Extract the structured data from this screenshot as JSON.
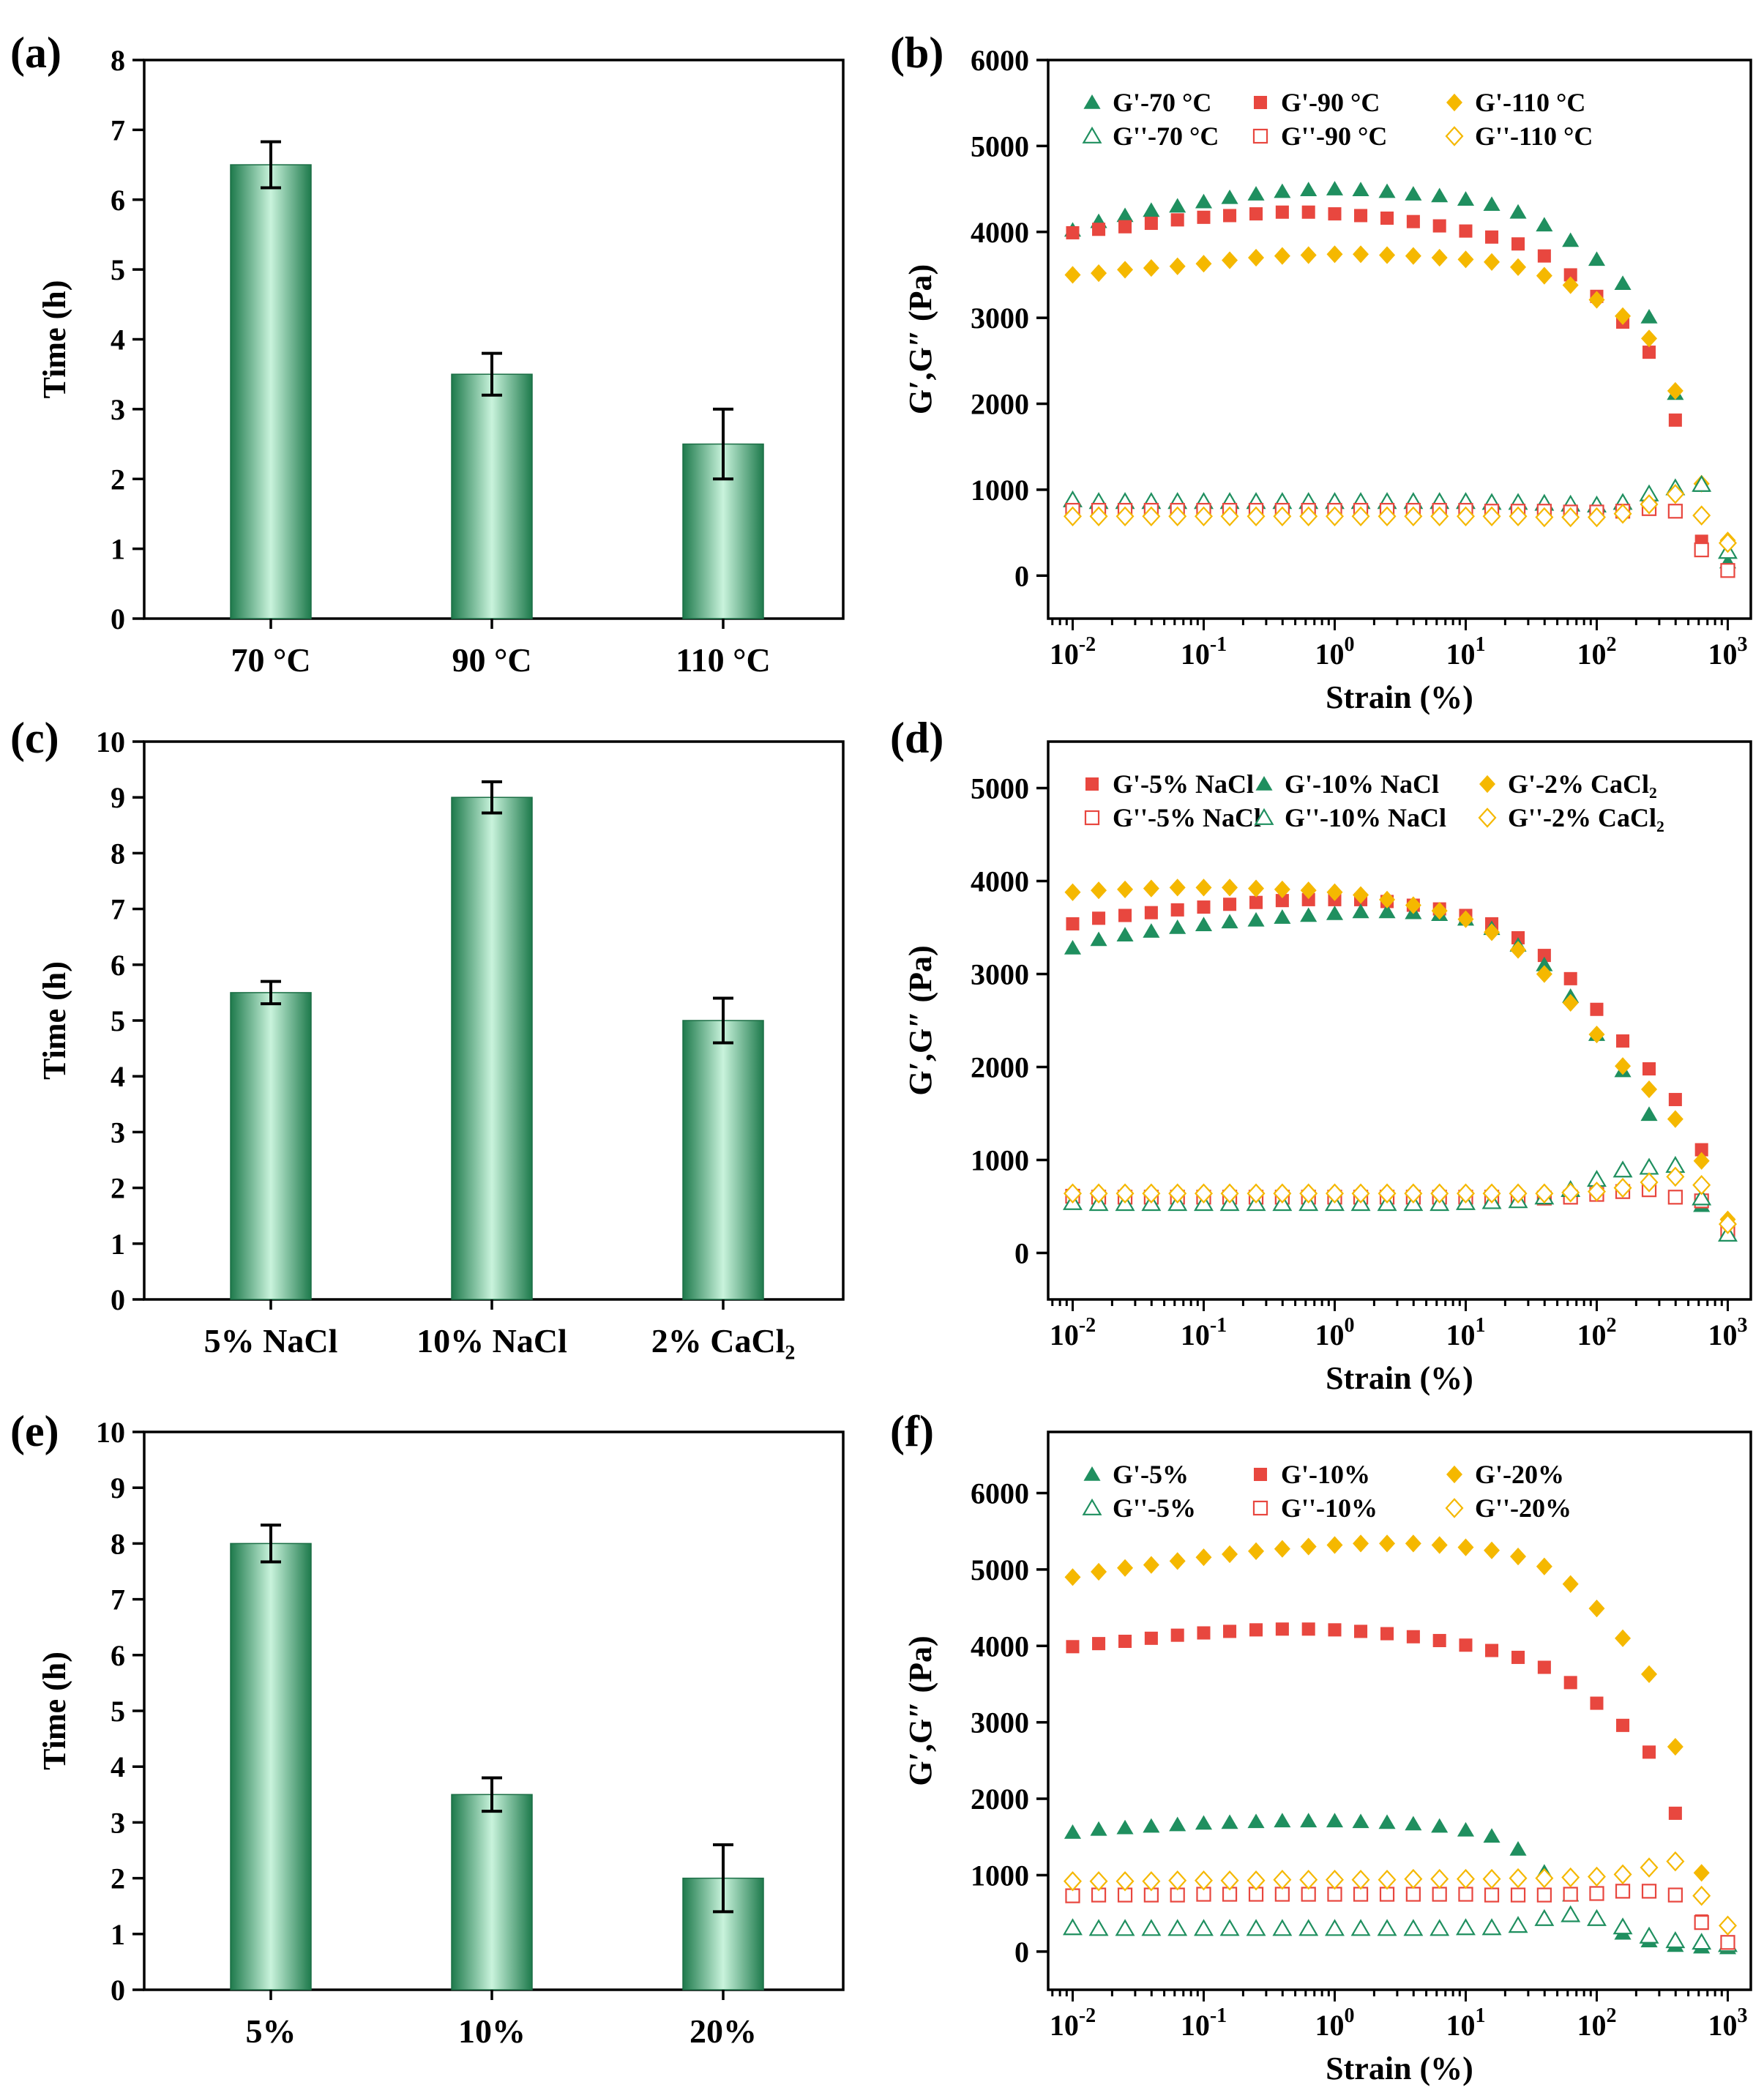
{
  "figure": {
    "panel_labels": [
      "(a)",
      "(b)",
      "(c)",
      "(d)",
      "(e)",
      "(f)"
    ]
  },
  "chart_data": [
    {
      "panel": "(a)",
      "type": "bar",
      "xlabel": "",
      "ylabel": "Time (h)",
      "ylim": [
        0,
        8
      ],
      "yticks": [
        0,
        1,
        2,
        3,
        4,
        5,
        6,
        7,
        8
      ],
      "categories": [
        "70 °C",
        "90 °C",
        "110 °C"
      ],
      "values": [
        6.5,
        3.5,
        2.5
      ],
      "errors": [
        0.33,
        0.3,
        0.5
      ]
    },
    {
      "panel": "(b)",
      "type": "scatter",
      "xscale": "log",
      "xlabel": "Strain (%)",
      "ylabel": "G′,G″ (Pa)",
      "xlim": [
        0.0065,
        1500
      ],
      "ylim": [
        -500,
        6000
      ],
      "yticks": [
        0,
        1000,
        2000,
        3000,
        4000,
        5000,
        6000
      ],
      "xticks": [
        {
          "base": "10",
          "exp": "-2",
          "value": 0.01
        },
        {
          "base": "10",
          "exp": "-1",
          "value": 0.1
        },
        {
          "base": "10",
          "exp": "0",
          "value": 1
        },
        {
          "base": "10",
          "exp": "1",
          "value": 10
        },
        {
          "base": "10",
          "exp": "2",
          "value": 100
        },
        {
          "base": "10",
          "exp": "3",
          "value": 1000
        }
      ],
      "x": [
        0.01,
        0.0158,
        0.0251,
        0.0398,
        0.0631,
        0.1,
        0.158,
        0.251,
        0.398,
        0.631,
        1,
        1.58,
        2.51,
        3.98,
        6.31,
        10,
        15.8,
        25.1,
        39.8,
        63.1,
        100,
        158,
        251,
        398,
        631,
        1000
      ],
      "legend": {
        "position": "top-left",
        "columns": 3
      },
      "series": [
        {
          "name": "G'-70 °C",
          "marker": "triangle",
          "filled": true,
          "color": "#1f8f5f",
          "values": [
            4020,
            4120,
            4190,
            4250,
            4300,
            4350,
            4400,
            4440,
            4470,
            4490,
            4500,
            4490,
            4470,
            4440,
            4420,
            4380,
            4320,
            4230,
            4080,
            3900,
            3680,
            3400,
            3010,
            2120,
            1050,
            160
          ]
        },
        {
          "name": "G'-90 °C",
          "marker": "square",
          "filled": true,
          "color": "#e8473f",
          "values": [
            3990,
            4030,
            4060,
            4100,
            4140,
            4170,
            4190,
            4210,
            4230,
            4230,
            4210,
            4190,
            4160,
            4120,
            4070,
            4010,
            3940,
            3860,
            3720,
            3500,
            3250,
            2950,
            2600,
            1810,
            400,
            60
          ]
        },
        {
          "name": "G'-110 °C",
          "marker": "diamond",
          "filled": true,
          "color": "#f5b800",
          "values": [
            3500,
            3520,
            3560,
            3580,
            3600,
            3630,
            3670,
            3700,
            3720,
            3730,
            3740,
            3740,
            3730,
            3720,
            3700,
            3680,
            3650,
            3590,
            3490,
            3380,
            3210,
            3020,
            2760,
            2150,
            1070,
            410
          ]
        },
        {
          "name": "G''-70 °C",
          "marker": "triangle",
          "filled": false,
          "color": "#1f8f5f",
          "values": [
            880,
            860,
            860,
            860,
            860,
            860,
            860,
            860,
            860,
            860,
            860,
            860,
            860,
            860,
            860,
            860,
            850,
            850,
            840,
            830,
            820,
            850,
            950,
            1020,
            1060,
            280
          ]
        },
        {
          "name": "G''-90 °C",
          "marker": "square",
          "filled": false,
          "color": "#e8473f",
          "values": [
            760,
            760,
            760,
            760,
            760,
            760,
            760,
            760,
            760,
            760,
            760,
            760,
            760,
            760,
            760,
            760,
            750,
            750,
            750,
            740,
            740,
            750,
            780,
            750,
            300,
            60
          ]
        },
        {
          "name": "G''-110 °C",
          "marker": "diamond",
          "filled": false,
          "color": "#f5b800",
          "values": [
            690,
            690,
            690,
            690,
            690,
            690,
            690,
            690,
            690,
            690,
            690,
            690,
            690,
            690,
            690,
            690,
            690,
            690,
            680,
            680,
            680,
            720,
            830,
            950,
            700,
            380
          ]
        }
      ]
    },
    {
      "panel": "(c)",
      "type": "bar",
      "xlabel": "",
      "ylabel": "Time (h)",
      "ylim": [
        0,
        10
      ],
      "yticks": [
        0,
        1,
        2,
        3,
        4,
        5,
        6,
        7,
        8,
        9,
        10
      ],
      "categories": [
        "5% NaCl",
        "10% NaCl",
        "2% CaCl₂"
      ],
      "values": [
        5.5,
        9.0,
        5.0
      ],
      "errors": [
        0.2,
        0.28,
        0.4
      ]
    },
    {
      "panel": "(d)",
      "type": "scatter",
      "xscale": "log",
      "xlabel": "Strain (%)",
      "ylabel": "G′,G″ (Pa)",
      "xlim": [
        0.0065,
        1500
      ],
      "ylim": [
        -500,
        5500
      ],
      "yticks": [
        0,
        1000,
        2000,
        3000,
        4000,
        5000
      ],
      "xticks": [
        {
          "base": "10",
          "exp": "-2",
          "value": 0.01
        },
        {
          "base": "10",
          "exp": "-1",
          "value": 0.1
        },
        {
          "base": "10",
          "exp": "0",
          "value": 1
        },
        {
          "base": "10",
          "exp": "1",
          "value": 10
        },
        {
          "base": "10",
          "exp": "2",
          "value": 100
        },
        {
          "base": "10",
          "exp": "3",
          "value": 1000
        }
      ],
      "x": [
        0.01,
        0.0158,
        0.0251,
        0.0398,
        0.0631,
        0.1,
        0.158,
        0.251,
        0.398,
        0.631,
        1,
        1.58,
        2.51,
        3.98,
        6.31,
        10,
        15.8,
        25.1,
        39.8,
        63.1,
        100,
        158,
        251,
        398,
        631,
        1000
      ],
      "legend": {
        "position": "top-left",
        "columns": 3
      },
      "series": [
        {
          "name": "G'-5% NaCl",
          "marker": "square",
          "filled": true,
          "color": "#e8473f",
          "values": [
            3540,
            3600,
            3630,
            3660,
            3690,
            3720,
            3750,
            3770,
            3790,
            3800,
            3800,
            3800,
            3780,
            3740,
            3700,
            3630,
            3540,
            3390,
            3200,
            2950,
            2620,
            2280,
            1980,
            1650,
            1110,
            310
          ]
        },
        {
          "name": "G'-10% NaCl",
          "marker": "triangle",
          "filled": true,
          "color": "#1f8f5f",
          "values": [
            3280,
            3370,
            3420,
            3460,
            3500,
            3530,
            3560,
            3580,
            3610,
            3630,
            3650,
            3670,
            3670,
            3660,
            3640,
            3590,
            3490,
            3310,
            3100,
            2760,
            2350,
            1960,
            1490,
            950,
            510,
            210
          ]
        },
        {
          "name": "G'-2% CaCl₂",
          "marker": "diamond",
          "filled": true,
          "color": "#f5b800",
          "values": [
            3880,
            3900,
            3910,
            3920,
            3930,
            3930,
            3930,
            3920,
            3910,
            3900,
            3880,
            3850,
            3800,
            3740,
            3680,
            3590,
            3450,
            3260,
            3000,
            2690,
            2350,
            2010,
            1760,
            1440,
            990,
            360
          ]
        },
        {
          "name": "G''-5% NaCl",
          "marker": "square",
          "filled": false,
          "color": "#e8473f",
          "values": [
            610,
            600,
            600,
            600,
            600,
            600,
            600,
            600,
            600,
            600,
            600,
            600,
            600,
            600,
            600,
            600,
            600,
            590,
            590,
            600,
            630,
            660,
            680,
            600,
            560,
            240
          ]
        },
        {
          "name": "G''-10% NaCl",
          "marker": "triangle",
          "filled": false,
          "color": "#1f8f5f",
          "values": [
            540,
            530,
            530,
            530,
            530,
            530,
            530,
            530,
            530,
            530,
            530,
            530,
            530,
            530,
            530,
            540,
            550,
            560,
            600,
            680,
            790,
            890,
            920,
            940,
            590,
            200
          ]
        },
        {
          "name": "G''-2% CaCl₂",
          "marker": "diamond",
          "filled": false,
          "color": "#f5b800",
          "values": [
            640,
            640,
            640,
            640,
            640,
            640,
            640,
            640,
            640,
            640,
            640,
            640,
            640,
            640,
            640,
            640,
            640,
            640,
            640,
            650,
            660,
            700,
            760,
            820,
            730,
            310
          ]
        }
      ]
    },
    {
      "panel": "(e)",
      "type": "bar",
      "xlabel": "",
      "ylabel": "Time (h)",
      "ylim": [
        0,
        10
      ],
      "yticks": [
        0,
        1,
        2,
        3,
        4,
        5,
        6,
        7,
        8,
        9,
        10
      ],
      "categories": [
        "5%",
        "10%",
        "20%"
      ],
      "values": [
        8.0,
        3.5,
        2.0
      ],
      "errors": [
        0.33,
        0.3,
        0.6
      ]
    },
    {
      "panel": "(f)",
      "type": "scatter",
      "xscale": "log",
      "xlabel": "Strain (%)",
      "ylabel": "G′,G″ (Pa)",
      "xlim": [
        0.0065,
        1500
      ],
      "ylim": [
        -500,
        6800
      ],
      "yticks": [
        0,
        1000,
        2000,
        3000,
        4000,
        5000,
        6000
      ],
      "xticks": [
        {
          "base": "10",
          "exp": "-2",
          "value": 0.01
        },
        {
          "base": "10",
          "exp": "-1",
          "value": 0.1
        },
        {
          "base": "10",
          "exp": "0",
          "value": 1
        },
        {
          "base": "10",
          "exp": "1",
          "value": 10
        },
        {
          "base": "10",
          "exp": "2",
          "value": 100
        },
        {
          "base": "10",
          "exp": "3",
          "value": 1000
        }
      ],
      "x": [
        0.01,
        0.0158,
        0.0251,
        0.0398,
        0.0631,
        0.1,
        0.158,
        0.251,
        0.398,
        0.631,
        1,
        1.58,
        2.51,
        3.98,
        6.31,
        10,
        15.8,
        25.1,
        39.8,
        63.1,
        100,
        158,
        251,
        398,
        631,
        1000
      ],
      "legend": {
        "position": "top-left",
        "columns": 3
      },
      "series": [
        {
          "name": "G'-5%",
          "marker": "triangle",
          "filled": true,
          "color": "#1f8f5f",
          "values": [
            1560,
            1600,
            1620,
            1640,
            1660,
            1680,
            1690,
            1700,
            1710,
            1710,
            1710,
            1700,
            1690,
            1670,
            1640,
            1590,
            1510,
            1340,
            1040,
            740,
            440,
            240,
            140,
            80,
            60,
            50
          ]
        },
        {
          "name": "G'-10%",
          "marker": "square",
          "filled": true,
          "color": "#e8473f",
          "values": [
            3990,
            4030,
            4060,
            4100,
            4140,
            4170,
            4190,
            4210,
            4220,
            4220,
            4210,
            4190,
            4160,
            4120,
            4070,
            4010,
            3940,
            3850,
            3720,
            3520,
            3250,
            2960,
            2610,
            1810,
            400,
            80
          ]
        },
        {
          "name": "G'-20%",
          "marker": "diamond",
          "filled": true,
          "color": "#f5b800",
          "values": [
            4900,
            4970,
            5020,
            5060,
            5110,
            5160,
            5200,
            5240,
            5270,
            5300,
            5320,
            5340,
            5340,
            5340,
            5320,
            5290,
            5250,
            5170,
            5040,
            4810,
            4490,
            4100,
            3630,
            2680,
            1030,
            330
          ]
        },
        {
          "name": "G''-5%",
          "marker": "triangle",
          "filled": false,
          "color": "#1f8f5f",
          "values": [
            310,
            300,
            300,
            300,
            300,
            300,
            300,
            300,
            300,
            300,
            300,
            300,
            300,
            300,
            300,
            310,
            310,
            340,
            430,
            480,
            430,
            320,
            200,
            140,
            120,
            90
          ]
        },
        {
          "name": "G''-10%",
          "marker": "square",
          "filled": false,
          "color": "#e8473f",
          "values": [
            730,
            740,
            740,
            740,
            740,
            750,
            750,
            750,
            750,
            750,
            750,
            750,
            750,
            750,
            750,
            750,
            740,
            740,
            740,
            750,
            760,
            790,
            790,
            740,
            380,
            120
          ]
        },
        {
          "name": "G''-20%",
          "marker": "diamond",
          "filled": false,
          "color": "#f5b800",
          "values": [
            920,
            920,
            920,
            920,
            930,
            930,
            930,
            930,
            940,
            940,
            940,
            940,
            940,
            950,
            950,
            950,
            950,
            960,
            960,
            970,
            980,
            1010,
            1100,
            1180,
            730,
            340
          ]
        }
      ]
    }
  ]
}
